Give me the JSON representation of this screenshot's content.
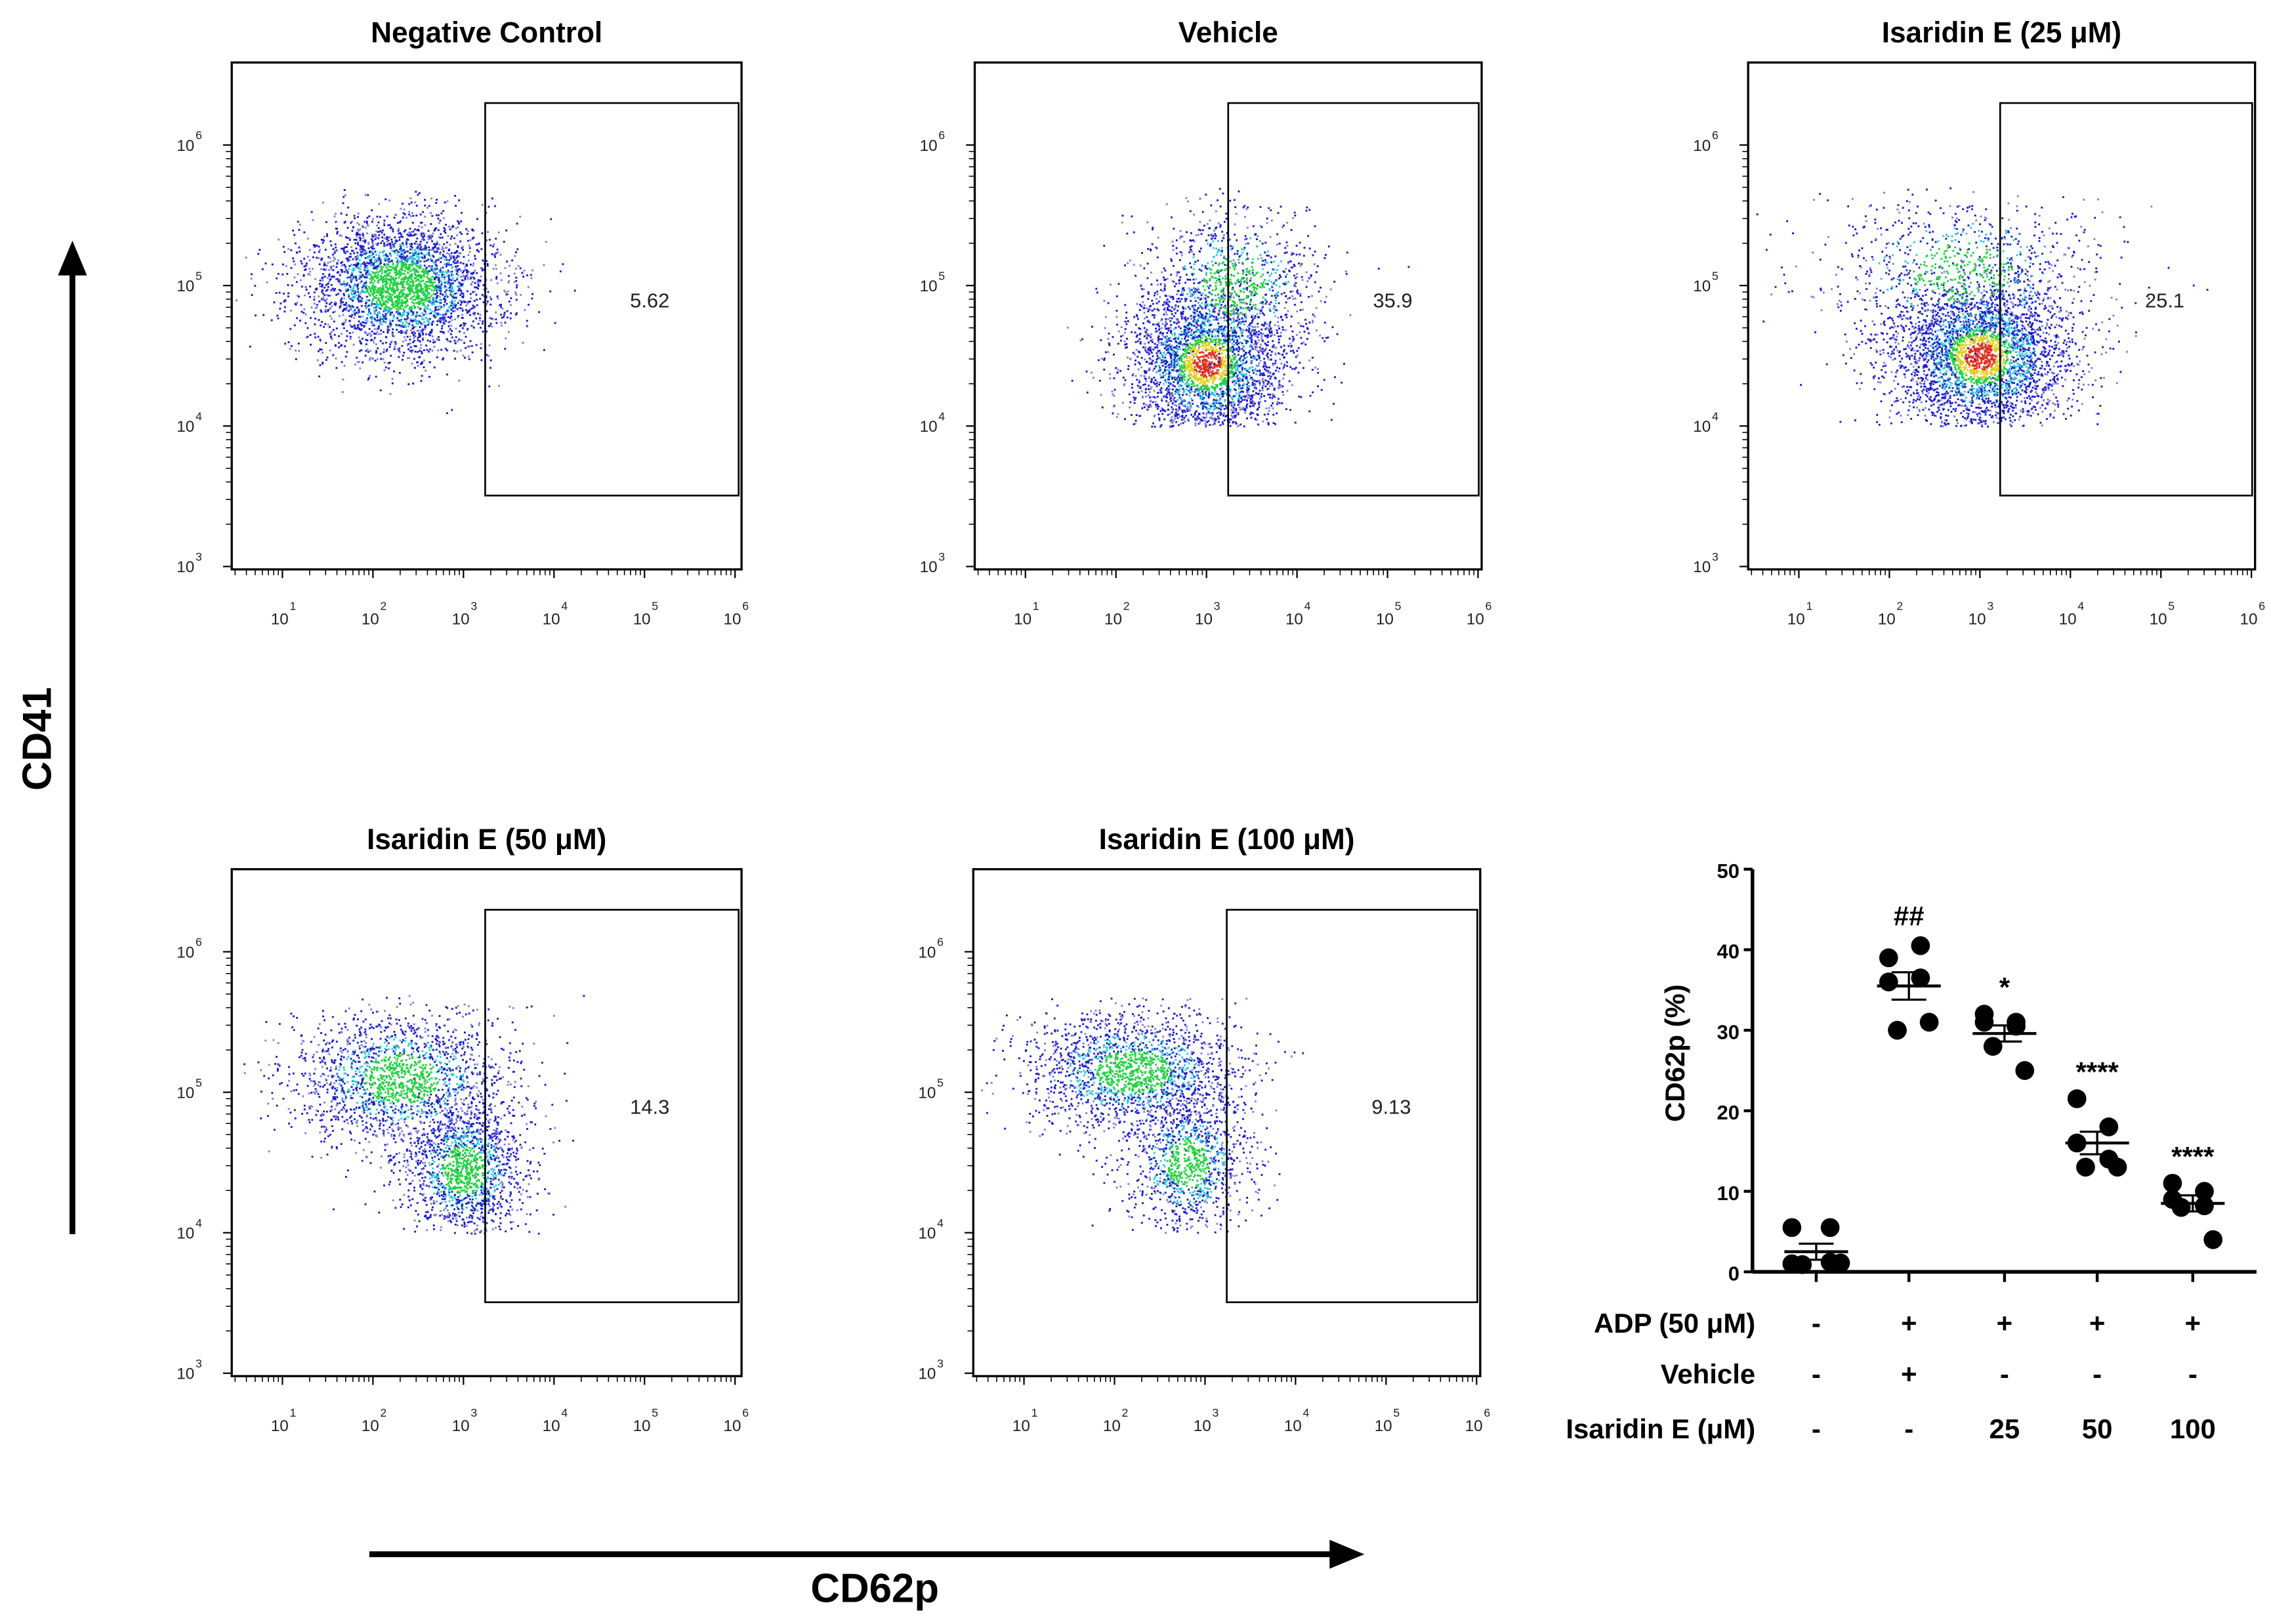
{
  "axes": {
    "y_label": "CD41",
    "x_label": "CD62p"
  },
  "chart_data": [
    {
      "type": "scatter",
      "subtype": "flow-cytometry-density",
      "panels": [
        {
          "title": "Negative Control",
          "gate_percent": "5.62"
        },
        {
          "title": "Vehicle",
          "gate_percent": "35.9"
        },
        {
          "title": "Isaridin E (25 μM)",
          "gate_percent": "25.1"
        },
        {
          "title": "Isaridin E (50 μM)",
          "gate_percent": "14.3"
        },
        {
          "title": "Isaridin E (100 μM)",
          "gate_percent": "9.13"
        }
      ],
      "x_axis": {
        "label": "CD62p",
        "scale": "log",
        "tick_labels": [
          "10",
          "10",
          "10",
          "10",
          "10",
          "10"
        ],
        "tick_exponents": [
          "1",
          "2",
          "3",
          "4",
          "5",
          "6"
        ]
      },
      "y_axis": {
        "label": "CD41",
        "scale": "log",
        "tick_labels": [
          "10",
          "10",
          "10",
          "10"
        ],
        "tick_exponents": [
          "6",
          "5",
          "4",
          "3"
        ]
      }
    },
    {
      "type": "scatter",
      "subtype": "dot-plot-mean-sem",
      "ylabel": "CD62p (%)",
      "ylim": [
        0,
        50
      ],
      "yticks": [
        "0",
        "10",
        "20",
        "30",
        "40",
        "50"
      ],
      "groups": [
        {
          "values": [
            5.5,
            5.5,
            1.0,
            1.2,
            0.9,
            1.1
          ],
          "mean": 2.5,
          "sem": 1.0,
          "annotation": ""
        },
        {
          "values": [
            39.0,
            40.5,
            36.0,
            36.5,
            30.0,
            31.0
          ],
          "mean": 35.5,
          "sem": 1.7,
          "annotation": "##"
        },
        {
          "values": [
            32.0,
            30.5,
            31.0,
            31.0,
            28.0,
            25.0
          ],
          "mean": 29.6,
          "sem": 1.0,
          "annotation": "*"
        },
        {
          "values": [
            21.5,
            18.0,
            16.0,
            14.0,
            13.0,
            13.0
          ],
          "mean": 16.0,
          "sem": 1.4,
          "annotation": "****"
        },
        {
          "values": [
            11.0,
            10.0,
            9.0,
            8.2,
            8.0,
            4.0
          ],
          "mean": 8.5,
          "sem": 1.0,
          "annotation": "****"
        }
      ],
      "conditions": [
        {
          "label": "ADP (50 μM)",
          "cells": [
            "-",
            "+",
            "+",
            "+",
            "+"
          ]
        },
        {
          "label": "Vehicle",
          "cells": [
            "-",
            "+",
            "-",
            "-",
            "-"
          ]
        },
        {
          "label": "Isaridin E (μM)",
          "cells": [
            "-",
            "-",
            "25",
            "50",
            "100"
          ]
        }
      ]
    }
  ]
}
